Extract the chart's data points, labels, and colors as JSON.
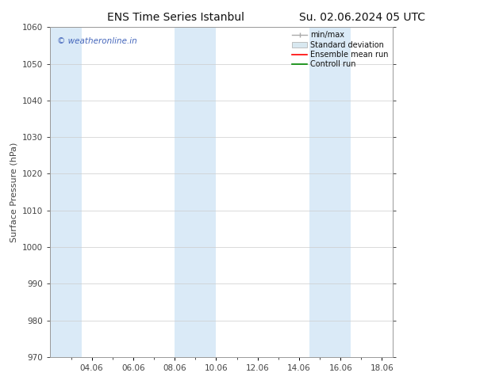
{
  "title_left": "ENS Time Series Istanbul",
  "title_right": "Su. 02.06.2024 05 UTC",
  "ylabel": "Surface Pressure (hPa)",
  "ylim": [
    970,
    1060
  ],
  "yticks": [
    970,
    980,
    990,
    1000,
    1010,
    1020,
    1030,
    1040,
    1050,
    1060
  ],
  "xtick_labels": [
    "04.06",
    "06.06",
    "08.06",
    "10.06",
    "12.06",
    "14.06",
    "16.06",
    "18.06"
  ],
  "xtick_positions": [
    4,
    6,
    8,
    10,
    12,
    14,
    16,
    18
  ],
  "xlim": [
    2,
    18.5
  ],
  "shaded_bands": [
    {
      "x_start": 2.0,
      "x_end": 3.5,
      "color": "#daeaf7"
    },
    {
      "x_start": 8.0,
      "x_end": 10.0,
      "color": "#daeaf7"
    },
    {
      "x_start": 14.5,
      "x_end": 16.5,
      "color": "#daeaf7"
    }
  ],
  "watermark_text": "© weatheronline.in",
  "watermark_color": "#4466bb",
  "legend_labels": [
    "min/max",
    "Standard deviation",
    "Ensemble mean run",
    "Controll run"
  ],
  "legend_colors_line": [
    "#aaaaaa",
    "#cccccc",
    "#ff0000",
    "#008800"
  ],
  "bg_color": "#ffffff",
  "grid_color": "#cccccc",
  "tick_color": "#444444",
  "spine_color": "#999999",
  "title_fontsize": 10,
  "label_fontsize": 8,
  "tick_fontsize": 7.5
}
